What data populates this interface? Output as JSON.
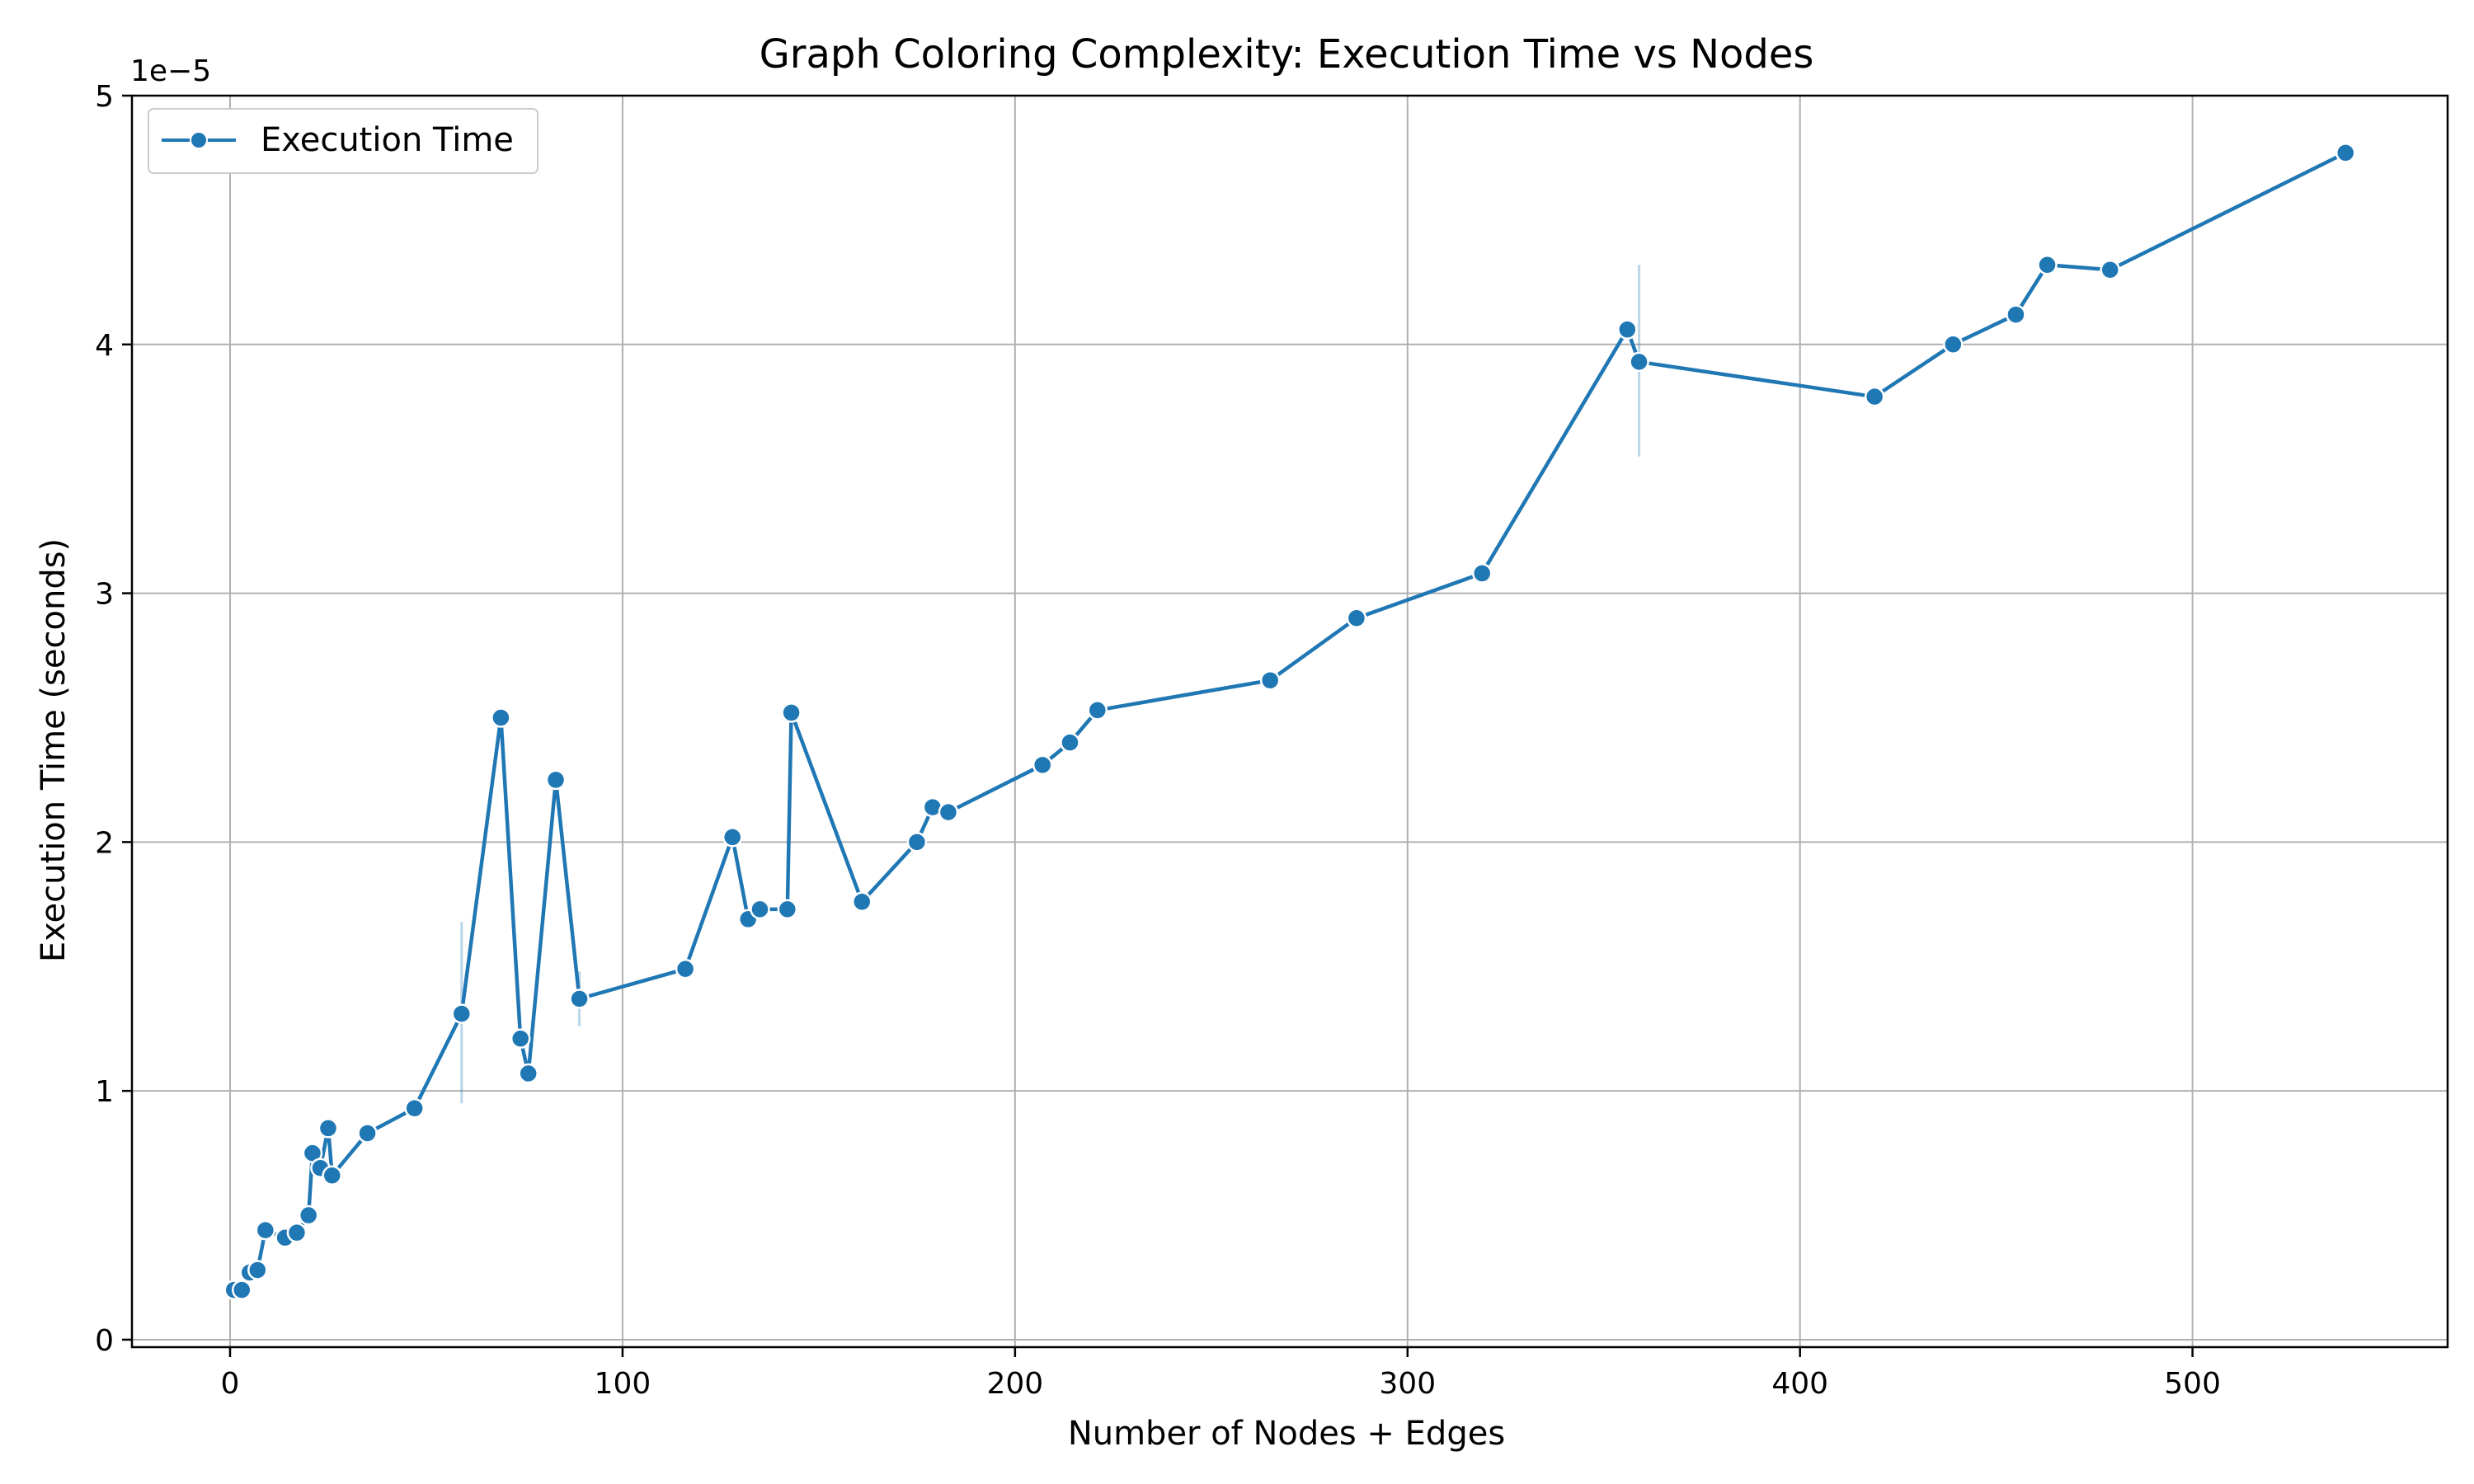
{
  "chart_data": {
    "type": "line",
    "title": "Graph Coloring Complexity: Execution Time vs Nodes",
    "xlabel": "Number of Nodes + Edges",
    "ylabel": "Execution Time (seconds)",
    "y_offset_label": "1e−5",
    "xlim": [
      -25,
      565
    ],
    "ylim": [
      -0.03,
      5.0
    ],
    "y_multiplier": 1e-05,
    "xticks": [
      0,
      100,
      200,
      300,
      400,
      500
    ],
    "yticks": [
      0,
      1,
      2,
      3,
      4,
      5
    ],
    "grid": true,
    "legend_position": "top-left",
    "series": [
      {
        "name": "Execution Time",
        "color": "#1f77b4",
        "marker": "circle",
        "x": [
          1,
          3,
          5,
          7,
          9,
          14,
          17,
          20,
          21,
          23,
          25,
          26,
          35,
          47,
          59,
          69,
          74,
          76,
          83,
          89,
          116,
          128,
          132,
          135,
          142,
          143,
          161,
          175,
          179,
          183,
          207,
          214,
          221,
          265,
          287,
          319,
          356,
          359,
          419,
          439,
          455,
          463,
          479,
          539
        ],
        "y": [
          0.2,
          0.2,
          0.27,
          0.28,
          0.44,
          0.41,
          0.43,
          0.5,
          0.75,
          0.69,
          0.85,
          0.66,
          0.83,
          0.93,
          1.31,
          2.5,
          1.21,
          1.07,
          2.25,
          1.37,
          1.49,
          2.02,
          1.69,
          1.73,
          1.73,
          2.52,
          1.76,
          2.0,
          2.14,
          2.12,
          2.31,
          2.4,
          2.53,
          2.65,
          2.9,
          3.08,
          4.06,
          3.93,
          3.79,
          4.0,
          4.12,
          4.32,
          4.3,
          4.77
        ],
        "error_bars": [
          {
            "x": 59,
            "low": 0.95,
            "high": 1.68
          },
          {
            "x": 89,
            "low": 1.26,
            "high": 1.48
          },
          {
            "x": 359,
            "low": 3.55,
            "high": 4.32
          }
        ]
      }
    ]
  }
}
